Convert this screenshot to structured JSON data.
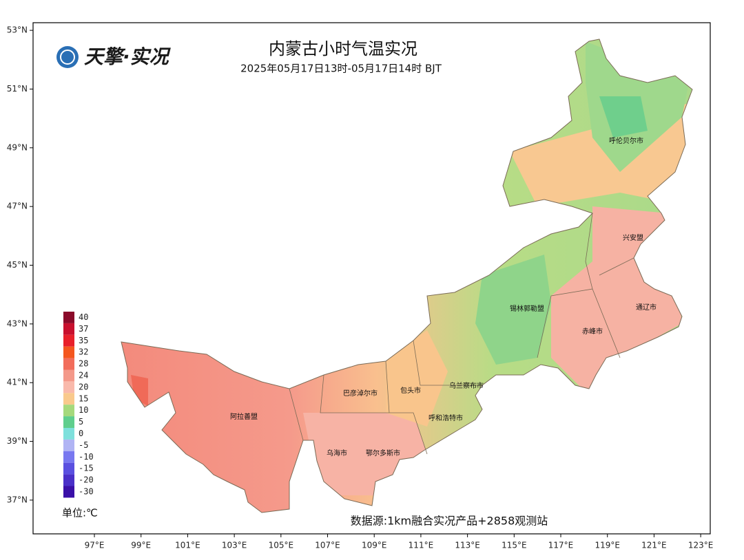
{
  "header": {
    "logo": "天擎·实况",
    "title": "内蒙古小时气温实况",
    "subtitle": "2025年05月17日13时-05月17日14时 BJT"
  },
  "map": {
    "xlim": [
      94.37,
      123.41
    ],
    "ylim": [
      35.85,
      53.26
    ],
    "xticks": [
      {
        "value": 97,
        "label": "97°E"
      },
      {
        "value": 99,
        "label": "99°E"
      },
      {
        "value": 101,
        "label": "101°E"
      },
      {
        "value": 103,
        "label": "103°E"
      },
      {
        "value": 105,
        "label": "105°E"
      },
      {
        "value": 107,
        "label": "107°E"
      },
      {
        "value": 109,
        "label": "109°E"
      },
      {
        "value": 111,
        "label": "111°E"
      },
      {
        "value": 113,
        "label": "113°E"
      },
      {
        "value": 115,
        "label": "115°E"
      },
      {
        "value": 117,
        "label": "117°E"
      },
      {
        "value": 119,
        "label": "119°E"
      },
      {
        "value": 121,
        "label": "121°E"
      },
      {
        "value": 123,
        "label": "123°E"
      }
    ],
    "yticks": [
      {
        "value": 53,
        "label": "53°N"
      },
      {
        "value": 51,
        "label": "51°N"
      },
      {
        "value": 49,
        "label": "49°N"
      },
      {
        "value": 47,
        "label": "47°N"
      },
      {
        "value": 45,
        "label": "45°N"
      },
      {
        "value": 43,
        "label": "43°N"
      },
      {
        "value": 41,
        "label": "41°N"
      },
      {
        "value": 39,
        "label": "39°N"
      },
      {
        "value": 37,
        "label": "37°N"
      }
    ],
    "regions": [
      "呼伦贝尔市",
      "兴安盟",
      "锡林郭勒盟",
      "通辽市",
      "赤峰市",
      "乌兰察布市",
      "巴彦淖尔市",
      "包头市",
      "呼和浩特市",
      "阿拉善盟",
      "乌海市",
      "鄂尔多斯市"
    ]
  },
  "legend": {
    "unit": "单位:℃",
    "items": [
      {
        "value": 40,
        "color": "#8b0a2a"
      },
      {
        "value": 37,
        "color": "#c8102e"
      },
      {
        "value": 35,
        "color": "#e8202a"
      },
      {
        "value": 32,
        "color": "#f4561e"
      },
      {
        "value": 28,
        "color": "#f26d5b"
      },
      {
        "value": 24,
        "color": "#f4998a"
      },
      {
        "value": 20,
        "color": "#f9b9ab"
      },
      {
        "value": 15,
        "color": "#f9c98c"
      },
      {
        "value": 10,
        "color": "#a5d97c"
      },
      {
        "value": 5,
        "color": "#5fce8d"
      },
      {
        "value": 0,
        "color": "#7ee0dc"
      },
      {
        "value": -5,
        "color": "#b0b4f4"
      },
      {
        "value": -10,
        "color": "#7878f0"
      },
      {
        "value": -15,
        "color": "#5a50e0"
      },
      {
        "value": -20,
        "color": "#4a30c8"
      },
      {
        "value": -30,
        "color": "#3a10a8"
      }
    ]
  },
  "footer": {
    "source": "数据源:1km融合实况产品+2858观测站"
  }
}
